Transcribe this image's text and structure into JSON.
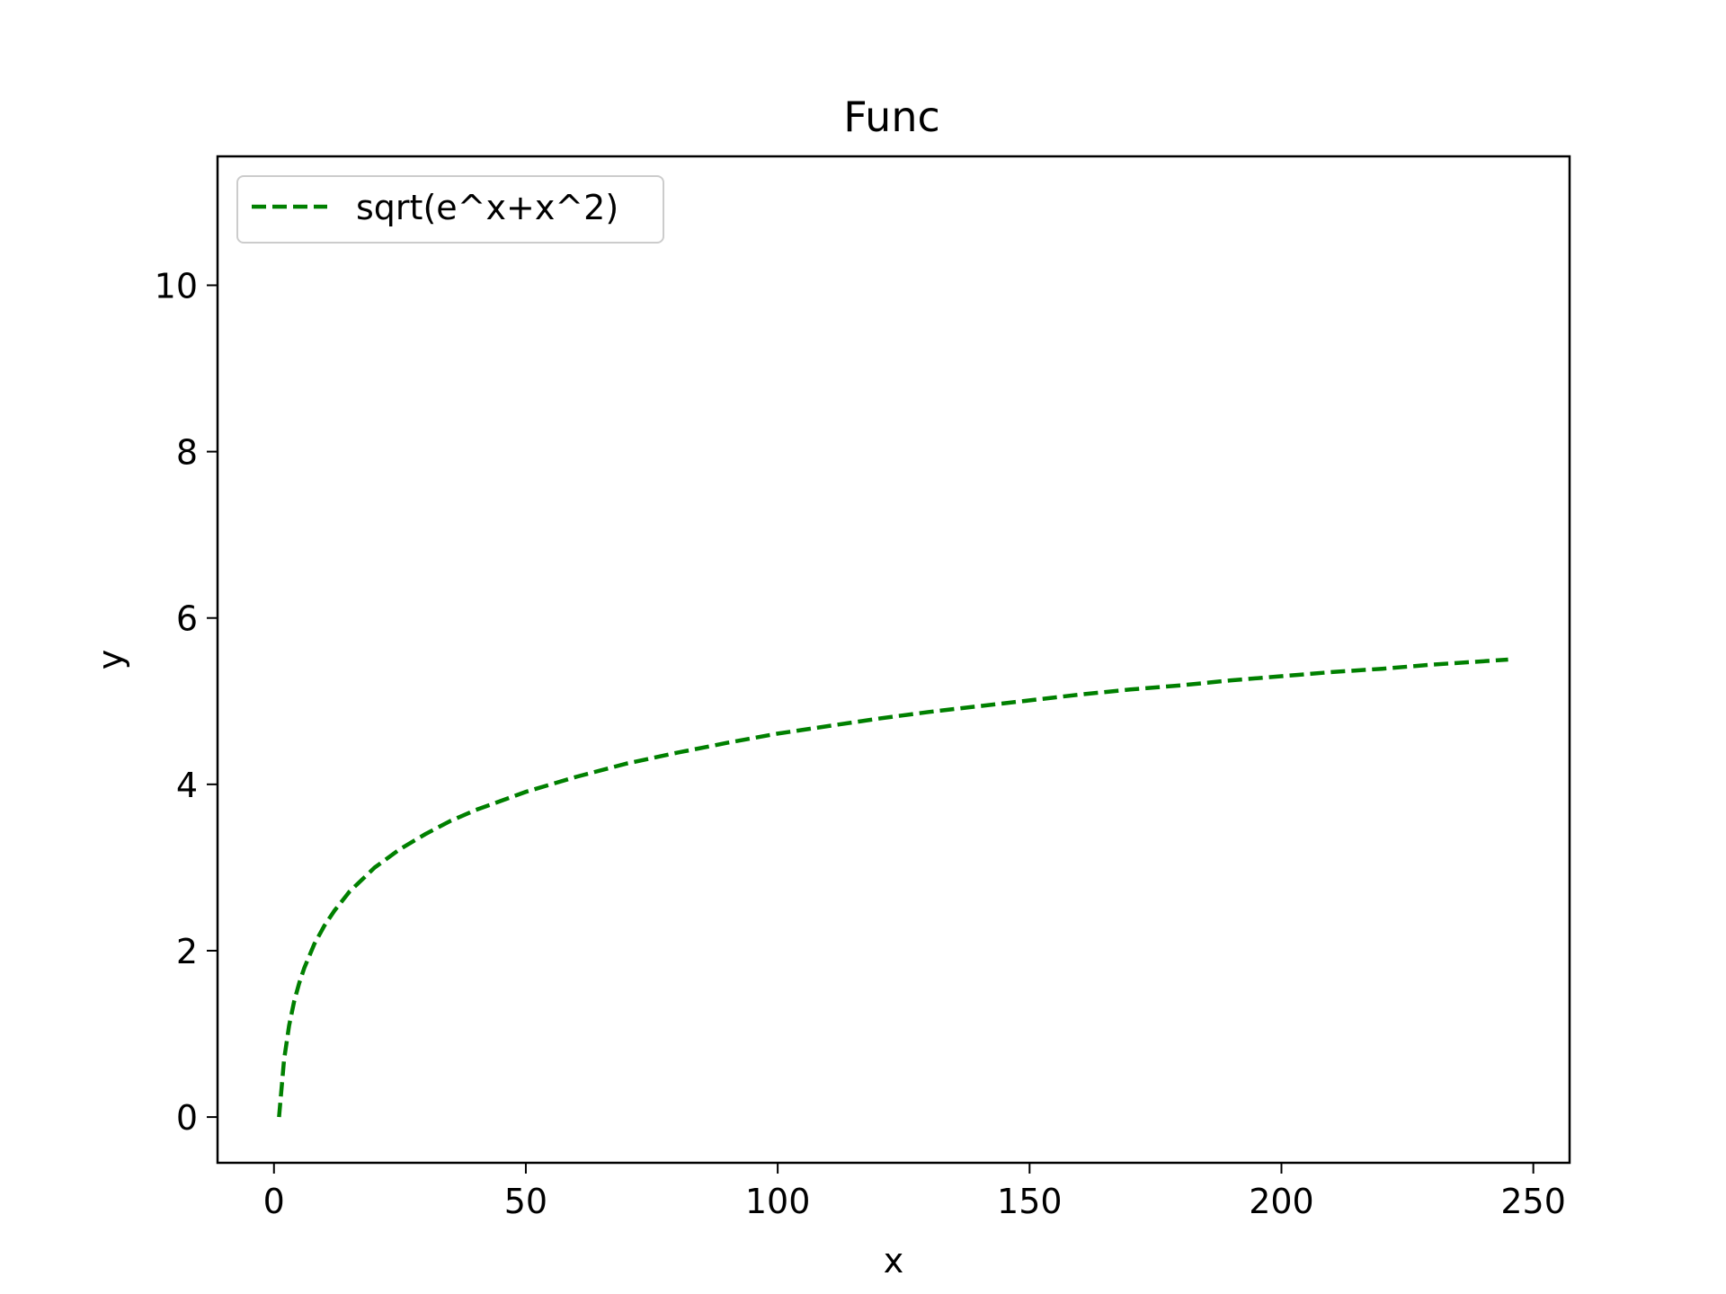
{
  "chart_data": {
    "type": "line",
    "title": "Func",
    "xlabel": "x",
    "ylabel": "y",
    "xlim": [
      -11.2,
      257.2
    ],
    "ylim": [
      -0.55,
      11.55
    ],
    "xticks": [
      0,
      50,
      100,
      150,
      200,
      250
    ],
    "yticks": [
      0,
      2,
      4,
      6,
      8,
      10
    ],
    "grid": false,
    "legend_position": "upper-left",
    "series": [
      {
        "name": "sqrt(e^x+x^2)",
        "color": "#008000",
        "line_style": "dashed",
        "x": [
          1,
          2,
          3,
          4,
          5,
          6,
          8,
          10,
          12,
          15,
          20,
          25,
          30,
          35,
          40,
          50,
          60,
          70,
          80,
          90,
          100,
          110,
          120,
          130,
          140,
          150,
          160,
          170,
          180,
          190,
          200,
          210,
          220,
          230,
          245
        ],
        "y": [
          0.0,
          0.69,
          1.1,
          1.39,
          1.61,
          1.79,
          2.08,
          2.3,
          2.48,
          2.71,
          3.0,
          3.22,
          3.4,
          3.56,
          3.69,
          3.91,
          4.09,
          4.25,
          4.38,
          4.5,
          4.61,
          4.7,
          4.79,
          4.87,
          4.94,
          5.01,
          5.08,
          5.14,
          5.19,
          5.25,
          5.3,
          5.35,
          5.39,
          5.44,
          5.5
        ]
      }
    ]
  }
}
